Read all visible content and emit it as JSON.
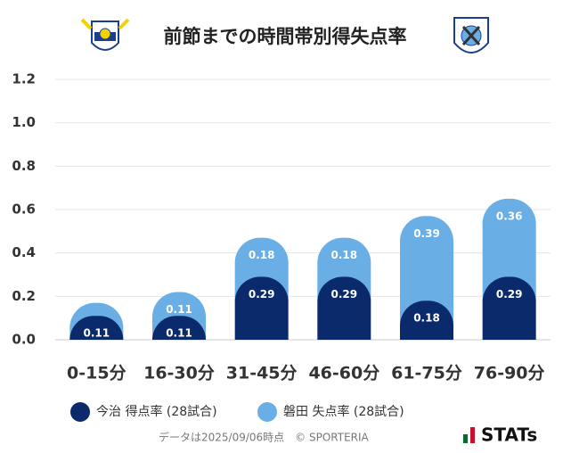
{
  "chart_data": {
    "type": "stacked_bar",
    "title": "前節までの時間帯別得失点率",
    "categories": [
      "0-15分",
      "16-30分",
      "31-45分",
      "46-60分",
      "61-75分",
      "76-90分"
    ],
    "series": [
      {
        "name": "今治 得点率 (28試合)",
        "color": "#0b2a6b",
        "values": [
          0.11,
          0.11,
          0.29,
          0.29,
          0.18,
          0.29
        ]
      },
      {
        "name": "磐田 失点率 (28試合)",
        "color": "#6aaee6",
        "values": [
          0.06,
          0.11,
          0.18,
          0.18,
          0.39,
          0.36
        ]
      }
    ],
    "ylim": [
      0,
      1.2
    ],
    "yticks": [
      {
        "value": 0,
        "label": "0.0"
      },
      {
        "value": 0.2,
        "label": "0.2"
      },
      {
        "value": 0.4,
        "label": "0.4"
      },
      {
        "value": 0.6,
        "label": "0.6"
      },
      {
        "value": 0.8,
        "label": "0.8"
      },
      {
        "value": 1.0,
        "label": "1.0"
      },
      {
        "value": 1.2,
        "label": "1.2"
      }
    ],
    "grid": true,
    "footer": "データは2025/09/06時点　© SPORTERIA",
    "brand": "STATs"
  }
}
